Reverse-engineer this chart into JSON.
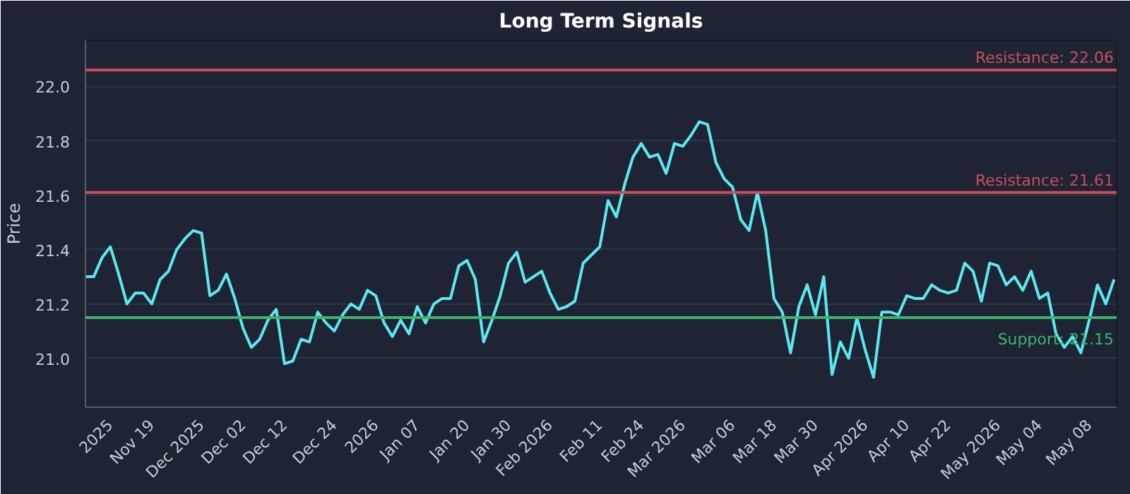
{
  "chart_data": {
    "type": "line",
    "title": "Long Term Signals",
    "ylabel": "Price",
    "categories": [
      null,
      null,
      null,
      "2025",
      null,
      null,
      null,
      null,
      "Nov 19",
      null,
      null,
      null,
      null,
      null,
      "Dec 2025",
      null,
      null,
      null,
      null,
      "Dec 02",
      null,
      null,
      null,
      null,
      "Dec 12",
      null,
      null,
      null,
      null,
      null,
      "Dec 24",
      null,
      null,
      null,
      null,
      "2026",
      null,
      null,
      null,
      null,
      "Jan 07",
      null,
      null,
      null,
      null,
      null,
      "Jan 20",
      null,
      null,
      null,
      null,
      "Jan 30",
      null,
      null,
      null,
      null,
      "Feb 2026",
      null,
      null,
      null,
      null,
      null,
      "Feb 11",
      null,
      null,
      null,
      null,
      "Feb 24",
      null,
      null,
      null,
      null,
      "Mar 2026",
      null,
      null,
      null,
      null,
      null,
      "Mar 06",
      null,
      null,
      null,
      null,
      "Mar 18",
      null,
      null,
      null,
      null,
      "Mar 30",
      null,
      null,
      null,
      null,
      null,
      "Apr 2026",
      null,
      null,
      null,
      null,
      "Apr 10",
      null,
      null,
      null,
      null,
      "Apr 22",
      null,
      null,
      null,
      null,
      null,
      "May 2026",
      null,
      null,
      null,
      null,
      "May 04",
      null,
      null,
      null,
      null,
      null,
      "May 08",
      null,
      null,
      null
    ],
    "series": [
      {
        "color": "#5ce8f0",
        "values": [
          21.3,
          21.3,
          21.37,
          21.41,
          21.31,
          21.2,
          21.24,
          21.24,
          21.2,
          21.29,
          21.32,
          21.4,
          21.44,
          21.47,
          21.46,
          21.23,
          21.25,
          21.31,
          21.22,
          21.11,
          21.04,
          21.07,
          21.14,
          21.18,
          20.98,
          20.99,
          21.07,
          21.06,
          21.17,
          21.13,
          21.1,
          21.16,
          21.2,
          21.18,
          21.25,
          21.23,
          21.13,
          21.08,
          21.14,
          21.09,
          21.19,
          21.13,
          21.2,
          21.22,
          21.22,
          21.34,
          21.36,
          21.29,
          21.06,
          21.14,
          21.23,
          21.35,
          21.39,
          21.28,
          21.3,
          21.32,
          21.24,
          21.18,
          21.19,
          21.21,
          21.35,
          21.38,
          21.41,
          21.58,
          21.52,
          21.64,
          21.74,
          21.79,
          21.74,
          21.75,
          21.68,
          21.79,
          21.78,
          21.82,
          21.87,
          21.86,
          21.72,
          21.66,
          21.63,
          21.51,
          21.47,
          21.61,
          21.47,
          21.22,
          21.17,
          21.02,
          21.19,
          21.27,
          21.16,
          21.3,
          20.94,
          21.06,
          21.0,
          21.15,
          21.03,
          20.93,
          21.17,
          21.17,
          21.16,
          21.23,
          21.22,
          21.22,
          21.27,
          21.25,
          21.24,
          21.25,
          21.35,
          21.32,
          21.21,
          21.35,
          21.34,
          21.27,
          21.3,
          21.25,
          21.32,
          21.22,
          21.24,
          21.09,
          21.04,
          21.08,
          21.02,
          21.14,
          21.27,
          21.2,
          21.29
        ]
      }
    ],
    "ylim": [
      20.82,
      22.17
    ],
    "yticks": [
      {
        "value": 21.0,
        "label": "21.0"
      },
      21.2,
      21.4,
      21.6,
      21.8,
      {
        "value": 22.0,
        "label": "22.0"
      }
    ],
    "ref_lines": [
      {
        "axis": "y",
        "value": 22.06,
        "label": "Resistance: 22.06",
        "color": "#c9505a"
      },
      {
        "axis": "y",
        "value": 21.61,
        "label": "Resistance: 21.61",
        "color": "#c9505a"
      },
      {
        "axis": "y",
        "value": 21.15,
        "label": "Support: 21.15",
        "color": "#3cb371"
      }
    ],
    "grid": "y",
    "marker": "none",
    "line_style": "solid"
  }
}
